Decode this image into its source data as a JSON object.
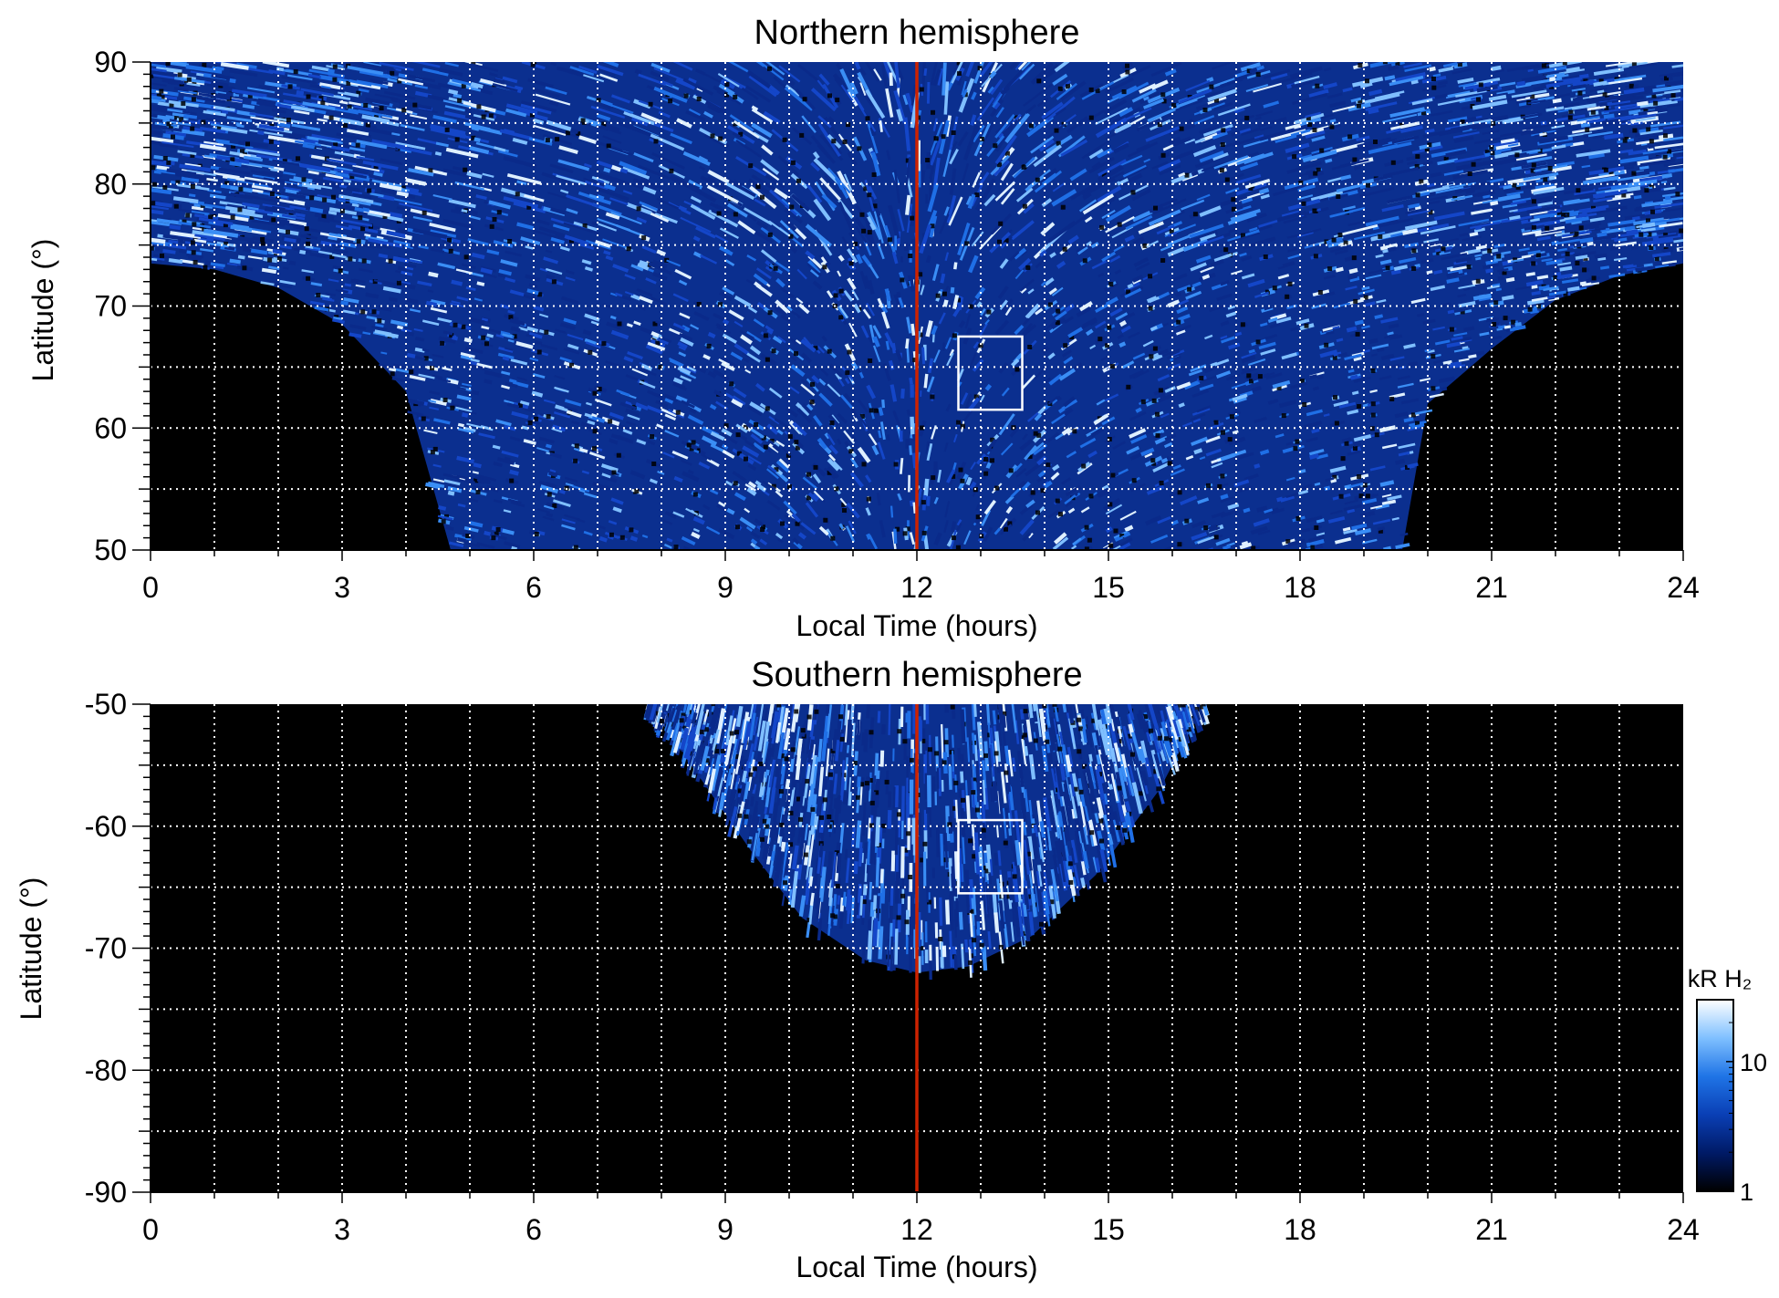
{
  "figure": {
    "colorbar": {
      "label": "kR H₂",
      "ticks": [
        {
          "value": 1,
          "label": "1"
        },
        {
          "value": 10,
          "label": "10"
        }
      ],
      "range": [
        1,
        30
      ],
      "scale": "log",
      "colors": [
        "#000000",
        "#001a66",
        "#0a3fb5",
        "#1f74e6",
        "#7fc0ff",
        "#ffffff"
      ]
    },
    "colors": {
      "background": "#000000",
      "noon_line": "#cc2200",
      "grid": "#ffffff",
      "box": "#ffffff",
      "emission": [
        "#0a2a8a",
        "#1446c8",
        "#1f6fe6",
        "#3a8ef5",
        "#7fbfff",
        "#dff0ff"
      ]
    }
  },
  "chart_data": [
    {
      "type": "heatmap",
      "title": "Northern hemisphere",
      "xlabel": "Local Time (hours)",
      "ylabel": "Latitude (°)",
      "xlim": [
        0,
        24
      ],
      "ylim": [
        50,
        90
      ],
      "xticks": [
        0,
        3,
        6,
        9,
        12,
        15,
        18,
        21,
        24
      ],
      "yticks": [
        50,
        60,
        70,
        80,
        90
      ],
      "grid": true,
      "grid_x": [
        1,
        2,
        3,
        4,
        5,
        6,
        7,
        8,
        9,
        10,
        11,
        12,
        13,
        14,
        15,
        16,
        17,
        18,
        19,
        20,
        21,
        22,
        23
      ],
      "grid_y": [
        55,
        60,
        65,
        70,
        75,
        80,
        85
      ],
      "noon_line_x": 12,
      "highlight_box": {
        "x": [
          12.65,
          13.65
        ],
        "y": [
          61.5,
          67.5
        ]
      },
      "coverage_boundary": [
        {
          "lt": 0,
          "lat": 73.5
        },
        {
          "lt": 1,
          "lat": 73
        },
        {
          "lt": 2,
          "lat": 71.5
        },
        {
          "lt": 3,
          "lat": 68.5
        },
        {
          "lt": 4,
          "lat": 63
        },
        {
          "lt": 4.7,
          "lat": 50
        },
        {
          "lt": 19.6,
          "lat": 50
        },
        {
          "lt": 20,
          "lat": 62
        },
        {
          "lt": 21,
          "lat": 66.5
        },
        {
          "lt": 22,
          "lat": 70.5
        },
        {
          "lt": 23,
          "lat": 72.5
        },
        {
          "lt": 24,
          "lat": 73.5
        }
      ]
    },
    {
      "type": "heatmap",
      "title": "Southern hemisphere",
      "xlabel": "Local Time (hours)",
      "ylabel": "Latitude (°)",
      "xlim": [
        0,
        24
      ],
      "ylim": [
        -90,
        -50
      ],
      "xticks": [
        0,
        3,
        6,
        9,
        12,
        15,
        18,
        21,
        24
      ],
      "yticks": [
        -50,
        -60,
        -70,
        -80,
        -90
      ],
      "grid": true,
      "grid_x": [
        1,
        2,
        3,
        4,
        5,
        6,
        7,
        8,
        9,
        10,
        11,
        12,
        13,
        14,
        15,
        16,
        17,
        18,
        19,
        20,
        21,
        22,
        23
      ],
      "grid_y": [
        -55,
        -60,
        -65,
        -70,
        -75,
        -80,
        -85
      ],
      "noon_line_x": 12,
      "highlight_box": {
        "x": [
          12.65,
          13.65
        ],
        "y": [
          -65.5,
          -59.5
        ]
      },
      "coverage_boundary": [
        {
          "lt": 7.8,
          "lat": -50
        },
        {
          "lt": 8.6,
          "lat": -56
        },
        {
          "lt": 9.4,
          "lat": -62
        },
        {
          "lt": 10.2,
          "lat": -67.5
        },
        {
          "lt": 11.2,
          "lat": -71
        },
        {
          "lt": 12,
          "lat": -72
        },
        {
          "lt": 12.8,
          "lat": -71.5
        },
        {
          "lt": 13.8,
          "lat": -69
        },
        {
          "lt": 14.8,
          "lat": -64
        },
        {
          "lt": 15.8,
          "lat": -57
        },
        {
          "lt": 16.5,
          "lat": -50
        }
      ]
    }
  ]
}
